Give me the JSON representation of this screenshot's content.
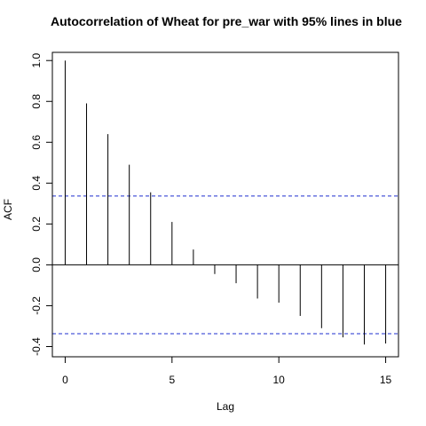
{
  "chart_data": {
    "type": "bar",
    "title": "Autocorrelation of Wheat for pre_war  with 95% lines in blue",
    "xlabel": "Lag",
    "ylabel": "ACF",
    "x": [
      0,
      1,
      2,
      3,
      4,
      5,
      6,
      7,
      8,
      9,
      10,
      11,
      12,
      13,
      14,
      15
    ],
    "values": [
      1.0,
      0.79,
      0.64,
      0.49,
      0.355,
      0.21,
      0.075,
      -0.045,
      -0.09,
      -0.165,
      -0.185,
      -0.25,
      -0.31,
      -0.355,
      -0.39,
      -0.385
    ],
    "confidence_bound": 0.337,
    "confidence_line_color": "#1f2fcf",
    "xlim": [
      -0.6,
      15.6
    ],
    "ylim": [
      -0.45,
      1.04
    ],
    "xticks": [
      0,
      5,
      10,
      15
    ],
    "xtick_labels": [
      "0",
      "5",
      "10",
      "15"
    ],
    "yticks": [
      -0.4,
      -0.2,
      0.0,
      0.2,
      0.4,
      0.6,
      0.8,
      1.0
    ],
    "ytick_labels": [
      "-0.4",
      "-0.2",
      "0.0",
      "0.2",
      "0.4",
      "0.6",
      "0.8",
      "1.0"
    ],
    "grid": false,
    "legend": "none"
  }
}
